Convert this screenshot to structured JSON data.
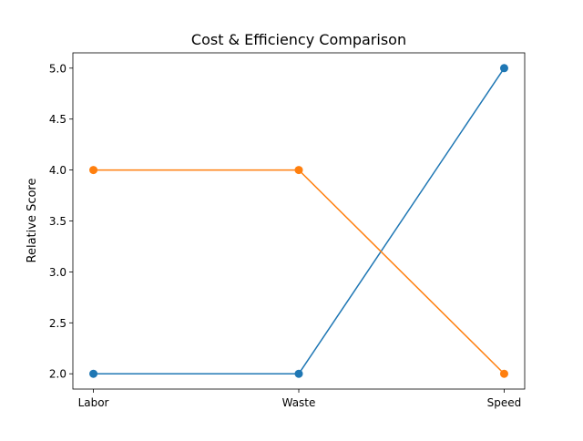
{
  "chart_data": {
    "type": "line",
    "title": "Cost & Efficiency Comparison",
    "xlabel": "",
    "ylabel": "Relative Score",
    "categories": [
      "Labor",
      "Waste",
      "Speed"
    ],
    "series": [
      {
        "values": [
          2,
          2,
          5
        ],
        "color": "#1f77b4"
      },
      {
        "values": [
          4,
          4,
          2
        ],
        "color": "#ff7f0e"
      }
    ],
    "ylim": [
      1.85,
      5.15
    ],
    "yticks": [
      "2.0",
      "2.5",
      "3.0",
      "3.5",
      "4.0",
      "4.5",
      "5.0"
    ],
    "grid": false,
    "legend": "none",
    "markers": "circle"
  }
}
